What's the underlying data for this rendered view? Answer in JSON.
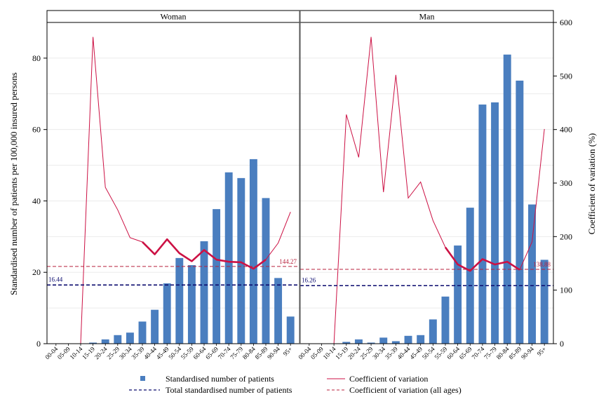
{
  "chart_data": {
    "type": "bar",
    "panels": [
      {
        "title": "Woman",
        "total_reference": 16.44,
        "total_reference_label": "16.44",
        "cv_all_ages": 144.27,
        "cv_all_ages_label": "144.27",
        "values": [
          0,
          0,
          0,
          0.3,
          1.2,
          2.4,
          3.1,
          6.2,
          9.5,
          16.9,
          24.0,
          22.0,
          28.7,
          37.7,
          48.0,
          46.4,
          51.7,
          40.8,
          18.4,
          7.6
        ],
        "cv": [
          null,
          null,
          0,
          573,
          292,
          250,
          198,
          190,
          167,
          195,
          169,
          154,
          175,
          157,
          153,
          152,
          140,
          157,
          188,
          246
        ],
        "cv_bold_from_index": 7
      },
      {
        "title": "Man",
        "total_reference": 16.26,
        "total_reference_label": "16.26",
        "cv_all_ages": 138.88,
        "cv_all_ages_label": "138.88",
        "values": [
          0,
          0,
          0,
          0.5,
          1.2,
          0.3,
          1.7,
          0.7,
          2.2,
          2.4,
          6.8,
          13.2,
          27.5,
          38.1,
          67.0,
          67.6,
          81.0,
          73.7,
          39.0,
          23.5
        ],
        "cv": [
          null,
          null,
          0,
          428,
          348,
          573,
          283,
          502,
          272,
          302,
          230,
          180,
          148,
          136,
          158,
          148,
          153,
          138,
          190,
          401
        ],
        "cv_bold_from_index": 11
      }
    ],
    "categories": [
      "00-04",
      "05-09",
      "10-14",
      "15-19",
      "20-24",
      "25-29",
      "30-34",
      "35-39",
      "40-44",
      "45-49",
      "50-54",
      "55-59",
      "60-64",
      "65-69",
      "70-74",
      "75-79",
      "80-84",
      "85-89",
      "90-94",
      "95+"
    ],
    "y_left": {
      "label": "Standardised number of patients per 100,000 insured persons",
      "min": 0,
      "max": 90,
      "ticks": [
        0,
        20,
        40,
        60,
        80
      ]
    },
    "y_right": {
      "label": "Coefficient of variation (%)",
      "min": 0,
      "max": 600,
      "ticks": [
        0,
        100,
        200,
        300,
        400,
        500,
        600
      ]
    },
    "grid": true,
    "legend": {
      "placement": "bottom",
      "items": [
        {
          "key": "bars",
          "label": "Standardised number of patients"
        },
        {
          "key": "cv",
          "label": "Coefficient of variation"
        },
        {
          "key": "total",
          "label": "Total standardised number of patients"
        },
        {
          "key": "cv_all",
          "label": "Coefficient of variation (all ages)"
        }
      ]
    },
    "colors": {
      "bar": "#4a7ebf",
      "cv": "#cc1144",
      "total": "#0a0a6e",
      "cv_all": "#b8203c"
    }
  }
}
